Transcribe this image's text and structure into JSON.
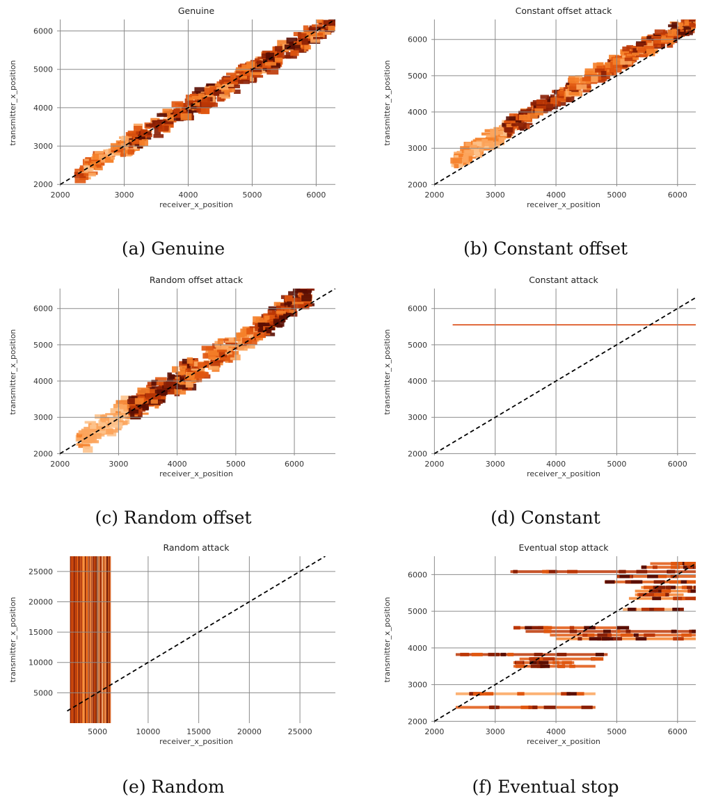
{
  "figure": {
    "captions": [
      "(a) Genuine",
      "(b) Constant offset",
      "(c) Random offset",
      "(d) Constant",
      "(e) Random",
      "(f) Eventual stop"
    ]
  },
  "chart_data": [
    {
      "type": "heatmap",
      "title": "Genuine",
      "xlabel": "receiver_x_position",
      "ylabel": "transmitter_x_position",
      "xlim": [
        1950,
        6300
      ],
      "ylim": [
        1950,
        6300
      ],
      "xticks": [
        2000,
        3000,
        4000,
        5000,
        6000
      ],
      "yticks": [
        2000,
        3000,
        4000,
        5000,
        6000
      ],
      "grid": true,
      "reference_line": {
        "style": "dashed",
        "from": [
          2000,
          2000
        ],
        "to": [
          6300,
          6300
        ]
      },
      "density_bands": [
        {
          "x": [
            2300,
            3300
          ],
          "y": [
            2300,
            3300
          ],
          "intensity": 0.45
        },
        {
          "x": [
            3100,
            4400
          ],
          "y": [
            3100,
            4400
          ],
          "intensity": 0.75
        },
        {
          "x": [
            4200,
            5300
          ],
          "y": [
            4100,
            5300
          ],
          "intensity": 0.6
        },
        {
          "x": [
            5200,
            6300
          ],
          "y": [
            5100,
            6300
          ],
          "intensity": 0.7
        }
      ],
      "band_halfwidth": 320
    },
    {
      "type": "heatmap",
      "title": "Constant offset attack",
      "xlabel": "receiver_x_position",
      "ylabel": "transmitter_x_position",
      "xlim": [
        1950,
        6300
      ],
      "ylim": [
        1950,
        6550
      ],
      "xticks": [
        2000,
        3000,
        4000,
        5000,
        6000
      ],
      "yticks": [
        2000,
        3000,
        4000,
        5000,
        6000
      ],
      "grid": true,
      "reference_line": {
        "style": "dashed",
        "from": [
          2000,
          2000
        ],
        "to": [
          6550,
          6550
        ]
      },
      "density_bands": [
        {
          "x": [
            2350,
            3300
          ],
          "y": [
            2650,
            3600
          ],
          "intensity": 0.35
        },
        {
          "x": [
            3200,
            4300
          ],
          "y": [
            3550,
            4650
          ],
          "intensity": 0.75
        },
        {
          "x": [
            4200,
            5300
          ],
          "y": [
            4550,
            5650
          ],
          "intensity": 0.55
        },
        {
          "x": [
            5300,
            6300
          ],
          "y": [
            5650,
            6500
          ],
          "intensity": 0.7
        }
      ],
      "band_halfwidth": 280
    },
    {
      "type": "heatmap",
      "title": "Random offset attack",
      "xlabel": "receiver_x_position",
      "ylabel": "transmitter_x_position",
      "xlim": [
        1950,
        6700
      ],
      "ylim": [
        1950,
        6550
      ],
      "xticks": [
        2000,
        3000,
        4000,
        5000,
        6000
      ],
      "yticks": [
        2000,
        3000,
        4000,
        5000,
        6000
      ],
      "grid": true,
      "reference_line": {
        "style": "dashed",
        "from": [
          2000,
          2000
        ],
        "to": [
          6700,
          6550
        ]
      },
      "density_bands": [
        {
          "x": [
            2350,
            3300
          ],
          "y": [
            2350,
            3300
          ],
          "intensity": 0.3
        },
        {
          "x": [
            3200,
            4300
          ],
          "y": [
            3200,
            4300
          ],
          "intensity": 0.8
        },
        {
          "x": [
            4200,
            5400
          ],
          "y": [
            4200,
            5400
          ],
          "intensity": 0.5
        },
        {
          "x": [
            5400,
            6300
          ],
          "y": [
            5400,
            6550
          ],
          "intensity": 0.8
        }
      ],
      "band_halfwidth": 420
    },
    {
      "type": "heatmap",
      "title": "Constant attack",
      "xlabel": "receiver_x_position",
      "ylabel": "transmitter_x_position",
      "xlim": [
        1950,
        6300
      ],
      "ylim": [
        1950,
        6550
      ],
      "xticks": [
        2000,
        3000,
        4000,
        5000,
        6000
      ],
      "yticks": [
        2000,
        3000,
        4000,
        5000,
        6000
      ],
      "grid": true,
      "reference_line": {
        "style": "dashed",
        "from": [
          2000,
          2000
        ],
        "to": [
          6300,
          6300
        ]
      },
      "constant_line": {
        "x": [
          2300,
          6300
        ],
        "y": 5550
      }
    },
    {
      "type": "heatmap",
      "title": "Random attack",
      "xlabel": "receiver_x_position",
      "ylabel": "transmitter_x_position",
      "xlim": [
        1000,
        28500
      ],
      "ylim": [
        0,
        27500
      ],
      "xticks": [
        5000,
        10000,
        15000,
        20000,
        25000
      ],
      "yticks": [
        5000,
        10000,
        15000,
        20000,
        25000
      ],
      "grid": true,
      "reference_line": {
        "style": "dashed",
        "from": [
          2000,
          2000
        ],
        "to": [
          27500,
          27500
        ]
      },
      "vertical_band": {
        "x": [
          2300,
          6300
        ],
        "y": [
          0,
          27500
        ]
      }
    },
    {
      "type": "heatmap",
      "title": "Eventual stop attack",
      "xlabel": "receiver_x_position",
      "ylabel": "transmitter_x_position",
      "xlim": [
        1950,
        6300
      ],
      "ylim": [
        1950,
        6500
      ],
      "xticks": [
        2000,
        3000,
        4000,
        5000,
        6000
      ],
      "yticks": [
        2000,
        3000,
        4000,
        5000,
        6000
      ],
      "grid": true,
      "reference_line": {
        "style": "dashed",
        "from": [
          2000,
          2000
        ],
        "to": [
          6300,
          6300
        ]
      },
      "horizontal_streaks": [
        {
          "y": 2380,
          "x": [
            2350,
            4650
          ],
          "intensity": 0.6
        },
        {
          "y": 2750,
          "x": [
            2350,
            4650
          ],
          "intensity": 0.25
        },
        {
          "y": 3500,
          "x": [
            3300,
            4650
          ],
          "intensity": 0.5
        },
        {
          "y": 3600,
          "x": [
            3300,
            4300
          ],
          "intensity": 0.6
        },
        {
          "y": 3700,
          "x": [
            3400,
            4650
          ],
          "intensity": 0.55
        },
        {
          "y": 3820,
          "x": [
            2350,
            4850
          ],
          "intensity": 0.7
        },
        {
          "y": 4250,
          "x": [
            4000,
            6300
          ],
          "intensity": 0.45
        },
        {
          "y": 4350,
          "x": [
            3900,
            6300
          ],
          "intensity": 0.6
        },
        {
          "y": 4450,
          "x": [
            3500,
            6300
          ],
          "intensity": 0.75
        },
        {
          "y": 4550,
          "x": [
            3300,
            5000
          ],
          "intensity": 0.5
        },
        {
          "y": 5050,
          "x": [
            5100,
            6000
          ],
          "intensity": 0.25
        },
        {
          "y": 5350,
          "x": [
            5200,
            6300
          ],
          "intensity": 0.35
        },
        {
          "y": 5450,
          "x": [
            5300,
            6100
          ],
          "intensity": 0.4
        },
        {
          "y": 5550,
          "x": [
            5300,
            6300
          ],
          "intensity": 0.35
        },
        {
          "y": 5650,
          "x": [
            5400,
            6300
          ],
          "intensity": 0.45
        },
        {
          "y": 5800,
          "x": [
            4800,
            6300
          ],
          "intensity": 0.55
        },
        {
          "y": 5950,
          "x": [
            5000,
            6300
          ],
          "intensity": 0.6
        },
        {
          "y": 6080,
          "x": [
            3250,
            6300
          ],
          "intensity": 0.7
        },
        {
          "y": 6200,
          "x": [
            5400,
            6300
          ],
          "intensity": 0.6
        },
        {
          "y": 6300,
          "x": [
            5550,
            6300
          ],
          "intensity": 0.55
        }
      ]
    }
  ]
}
